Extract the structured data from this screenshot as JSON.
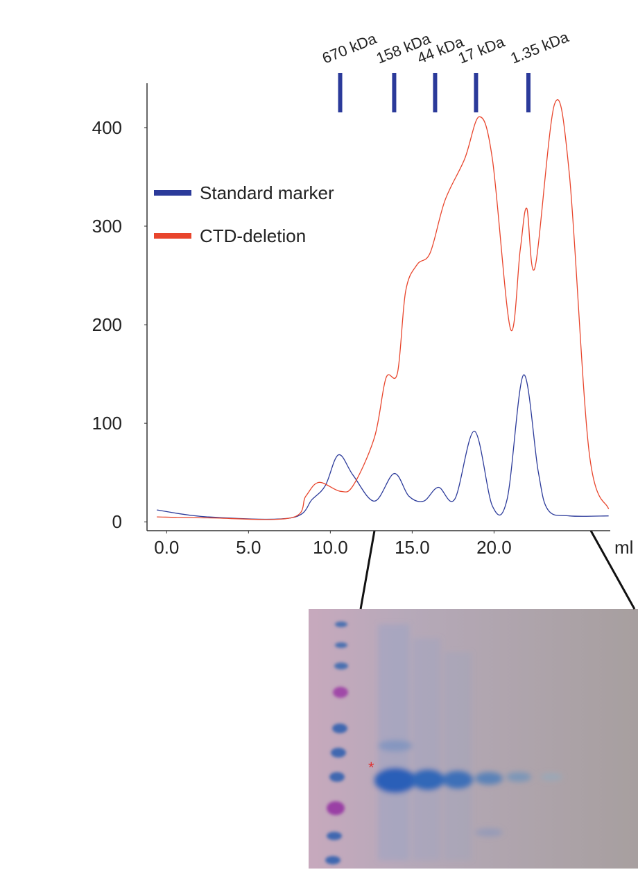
{
  "chart_data": {
    "type": "line",
    "xlim": [
      -1.2,
      27.1
    ],
    "ylim": [
      -9,
      445
    ],
    "xticks": [
      {
        "value": 0,
        "label": "0.0"
      },
      {
        "value": 5,
        "label": "5.0"
      },
      {
        "value": 10,
        "label": "10.0"
      },
      {
        "value": 15,
        "label": "15.0"
      },
      {
        "value": 20,
        "label": "20.0"
      }
    ],
    "yticks": [
      0,
      100,
      200,
      300,
      400
    ],
    "x_label": "ml",
    "grid": false,
    "legend": "upper left",
    "markers": [
      {
        "label": "670 kDa",
        "x": 10.6
      },
      {
        "label": "158 kDa",
        "x": 13.9
      },
      {
        "label": "44 kDa",
        "x": 16.4
      },
      {
        "label": "17 kDa",
        "x": 18.9
      },
      {
        "label": "1.35 kDa",
        "x": 22.1
      }
    ],
    "marker_color": "#2b3a9a",
    "series": [
      {
        "name": "Standard marker",
        "color": "#2b3a9a",
        "x": [
          -0.6,
          2.5,
          7.6,
          8.9,
          9.7,
          10.5,
          11.4,
          12.7,
          13.9,
          14.8,
          15.7,
          16.6,
          17.6,
          18.8,
          19.9,
          20.8,
          21.8,
          22.7,
          23.3,
          24.6,
          27.0
        ],
        "values": [
          12,
          5,
          4,
          23,
          37,
          68,
          47,
          21,
          49,
          26,
          21,
          35,
          23,
          92,
          16,
          23,
          149,
          51,
          12,
          6,
          6
        ]
      },
      {
        "name": "CTD-deletion",
        "color": "#e8452c",
        "x": [
          -0.6,
          2.5,
          7.6,
          8.5,
          9.3,
          10.6,
          11.4,
          12.7,
          13.4,
          14.1,
          14.6,
          15.3,
          16.1,
          17.0,
          18.2,
          19.1,
          19.9,
          21.0,
          21.6,
          22.0,
          22.5,
          23.7,
          24.6,
          25.8,
          27.0
        ],
        "values": [
          5,
          4,
          4,
          26,
          40,
          31,
          37,
          86,
          146,
          151,
          234,
          261,
          273,
          326,
          368,
          411,
          368,
          196,
          276,
          318,
          258,
          424,
          353,
          72,
          13
        ]
      }
    ],
    "gel_annotation": "*"
  }
}
